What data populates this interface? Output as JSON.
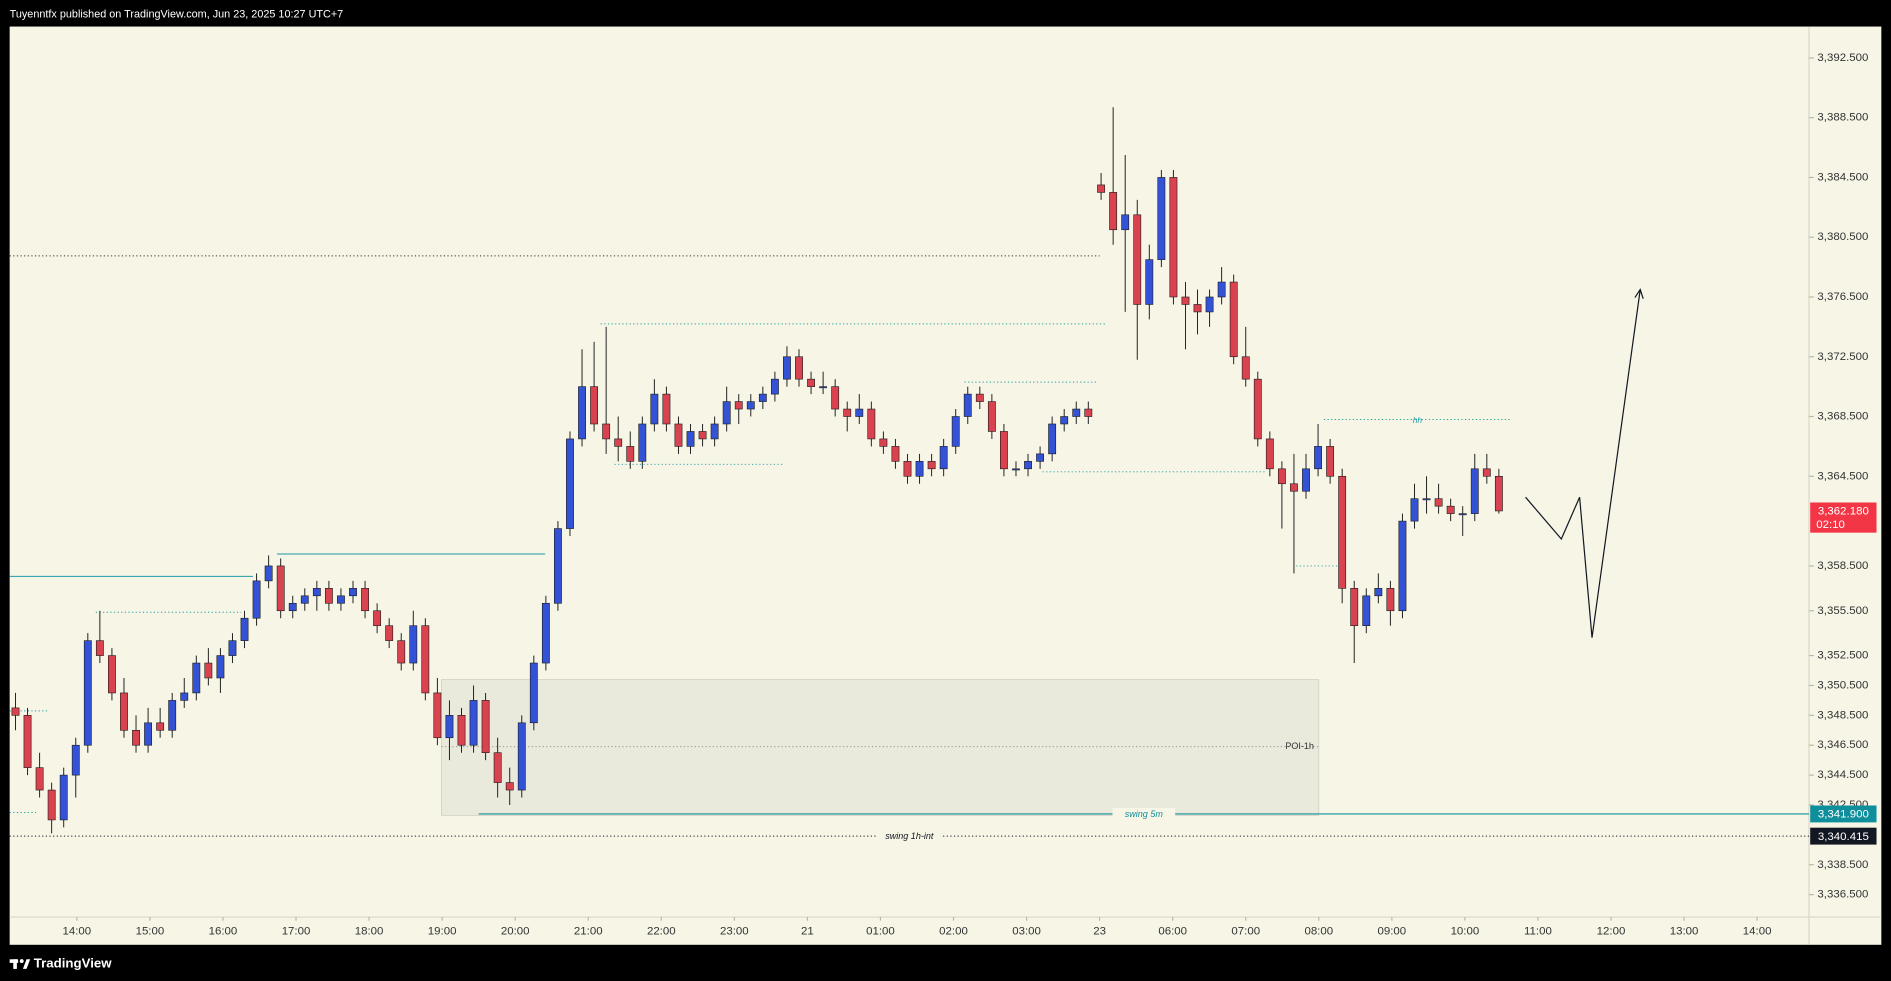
{
  "header": {
    "title": "Tuyenntfx published on TradingView.com, Jun 23, 2025 10:27 UTC+7"
  },
  "footer": {
    "brand": "TradingView"
  },
  "chart_data": {
    "type": "candlestick",
    "up_color": "#3452d6",
    "down_color": "#d8434f",
    "wick_color": "#1c1c1c",
    "xlim": [
      -0.92,
      23.71
    ],
    "ylim": [
      3335.0,
      3394.6
    ],
    "xticks": [
      {
        "value": 0,
        "label": "14:00"
      },
      {
        "value": 1,
        "label": "15:00"
      },
      {
        "value": 2,
        "label": "16:00"
      },
      {
        "value": 3,
        "label": "17:00"
      },
      {
        "value": 4,
        "label": "18:00"
      },
      {
        "value": 5,
        "label": "19:00"
      },
      {
        "value": 6,
        "label": "20:00"
      },
      {
        "value": 7,
        "label": "21:00"
      },
      {
        "value": 8,
        "label": "22:00"
      },
      {
        "value": 9,
        "label": "23:00"
      },
      {
        "value": 10,
        "label": "21"
      },
      {
        "value": 11,
        "label": "01:00"
      },
      {
        "value": 12,
        "label": "02:00"
      },
      {
        "value": 13,
        "label": "03:00"
      },
      {
        "value": 14,
        "label": "23"
      },
      {
        "value": 15,
        "label": "06:00"
      },
      {
        "value": 16,
        "label": "07:00"
      },
      {
        "value": 17,
        "label": "08:00"
      },
      {
        "value": 18,
        "label": "09:00"
      },
      {
        "value": 19,
        "label": "10:00"
      },
      {
        "value": 20,
        "label": "11:00"
      },
      {
        "value": 21,
        "label": "12:00"
      },
      {
        "value": 22,
        "label": "13:00"
      },
      {
        "value": 23,
        "label": "14:00"
      }
    ],
    "yticks": [
      {
        "value": 3392.5,
        "label": "3,392.500"
      },
      {
        "value": 3388.5,
        "label": "3,388.500"
      },
      {
        "value": 3384.5,
        "label": "3,384.500"
      },
      {
        "value": 3380.5,
        "label": "3,380.500"
      },
      {
        "value": 3376.5,
        "label": "3,376.500"
      },
      {
        "value": 3372.5,
        "label": "3,372.500"
      },
      {
        "value": 3368.5,
        "label": "3,368.500"
      },
      {
        "value": 3364.5,
        "label": "3,364.500"
      },
      {
        "value": 3358.5,
        "label": "3,358.500"
      },
      {
        "value": 3355.5,
        "label": "3,355.500"
      },
      {
        "value": 3352.5,
        "label": "3,352.500"
      },
      {
        "value": 3350.5,
        "label": "3,350.500"
      },
      {
        "value": 3348.5,
        "label": "3,348.500"
      },
      {
        "value": 3346.5,
        "label": "3,346.500"
      },
      {
        "value": 3344.5,
        "label": "3,344.500"
      },
      {
        "value": 3342.5,
        "label": "3,342.500"
      },
      {
        "value": 3338.5,
        "label": "3,338.500"
      },
      {
        "value": 3336.5,
        "label": "3,336.500"
      }
    ],
    "x": [
      -0.84,
      -0.675,
      -0.51,
      -0.345,
      -0.18,
      -0.015,
      0.15,
      0.315,
      0.48,
      0.645,
      0.81,
      0.975,
      1.14,
      1.305,
      1.47,
      1.635,
      1.8,
      1.965,
      2.13,
      2.295,
      2.46,
      2.625,
      2.79,
      2.955,
      3.12,
      3.285,
      3.45,
      3.615,
      3.78,
      3.945,
      4.11,
      4.275,
      4.44,
      4.605,
      4.77,
      4.935,
      5.1,
      5.265,
      5.43,
      5.595,
      5.76,
      5.925,
      6.09,
      6.255,
      6.42,
      6.585,
      6.75,
      6.915,
      7.08,
      7.245,
      7.41,
      7.575,
      7.74,
      7.905,
      8.07,
      8.235,
      8.4,
      8.565,
      8.73,
      8.895,
      9.06,
      9.225,
      9.39,
      9.555,
      9.72,
      9.885,
      10.05,
      10.215,
      10.38,
      10.545,
      10.71,
      10.875,
      11.04,
      11.205,
      11.37,
      11.535,
      11.7,
      11.865,
      12.03,
      12.195,
      12.36,
      12.525,
      12.69,
      12.855,
      13.02,
      13.185,
      13.35,
      13.515,
      13.68,
      13.845,
      14.02,
      14.185,
      14.35,
      14.515,
      14.68,
      14.845,
      15.01,
      15.175,
      15.34,
      15.505,
      15.67,
      15.835,
      16.0,
      16.165,
      16.33,
      16.495,
      16.66,
      16.825,
      16.99,
      17.155,
      17.32,
      17.485,
      17.65,
      17.815,
      17.98,
      18.145,
      18.31,
      18.475,
      18.64,
      18.805,
      18.97,
      19.135,
      19.3,
      19.465
    ],
    "candles": [
      [
        3349,
        3350,
        3347.5,
        3348.5
      ],
      [
        3348.5,
        3349,
        3344.5,
        3345
      ],
      [
        3345,
        3346,
        3343,
        3343.5
      ],
      [
        3343.5,
        3344,
        3340.6,
        3341.5
      ],
      [
        3341.5,
        3345,
        3341,
        3344.5
      ],
      [
        3344.5,
        3347,
        3343,
        3346.5
      ],
      [
        3346.5,
        3354,
        3346,
        3353.5
      ],
      [
        3353.5,
        3355.5,
        3352,
        3352.5
      ],
      [
        3352.5,
        3353,
        3349.5,
        3350
      ],
      [
        3350,
        3351,
        3347,
        3347.5
      ],
      [
        3347.5,
        3348.5,
        3346,
        3346.5
      ],
      [
        3346.5,
        3349,
        3346,
        3348
      ],
      [
        3348,
        3349,
        3347,
        3347.5
      ],
      [
        3347.5,
        3350,
        3347,
        3349.5
      ],
      [
        3349.5,
        3351,
        3349,
        3350
      ],
      [
        3350,
        3352.5,
        3349.5,
        3352
      ],
      [
        3352,
        3353,
        3350.5,
        3351
      ],
      [
        3351,
        3353,
        3350,
        3352.5
      ],
      [
        3352.5,
        3354,
        3352,
        3353.5
      ],
      [
        3353.5,
        3355.5,
        3353,
        3355
      ],
      [
        3355,
        3358,
        3354.5,
        3357.5
      ],
      [
        3357.5,
        3359.2,
        3357,
        3358.5
      ],
      [
        3358.5,
        3359,
        3355,
        3355.5
      ],
      [
        3355.5,
        3356.5,
        3355,
        3356
      ],
      [
        3356,
        3357,
        3355.5,
        3356.5
      ],
      [
        3356.5,
        3357.5,
        3355.5,
        3357
      ],
      [
        3357,
        3357.5,
        3355.5,
        3356
      ],
      [
        3356,
        3357,
        3355.5,
        3356.5
      ],
      [
        3356.5,
        3357.5,
        3356,
        3357
      ],
      [
        3357,
        3357.5,
        3355,
        3355.5
      ],
      [
        3355.5,
        3356,
        3354,
        3354.5
      ],
      [
        3354.5,
        3355,
        3353,
        3353.5
      ],
      [
        3353.5,
        3354,
        3351.5,
        3352
      ],
      [
        3352,
        3355.5,
        3351.5,
        3354.5
      ],
      [
        3354.5,
        3355,
        3349.5,
        3350
      ],
      [
        3350,
        3351,
        3346.5,
        3347
      ],
      [
        3347,
        3349.5,
        3345.5,
        3348.5
      ],
      [
        3348.5,
        3349,
        3346,
        3346.5
      ],
      [
        3346.5,
        3350.5,
        3346,
        3349.5
      ],
      [
        3349.5,
        3350,
        3345.5,
        3346
      ],
      [
        3346,
        3347,
        3343,
        3344
      ],
      [
        3344,
        3345,
        3342.5,
        3343.5
      ],
      [
        3343.5,
        3348.5,
        3343,
        3348
      ],
      [
        3348,
        3352.5,
        3347.5,
        3352
      ],
      [
        3352,
        3356.5,
        3351.5,
        3356
      ],
      [
        3356,
        3361.5,
        3355.5,
        3361
      ],
      [
        3361,
        3367.5,
        3360.5,
        3367
      ],
      [
        3367,
        3373,
        3366.5,
        3370.5
      ],
      [
        3370.5,
        3373.5,
        3367.5,
        3368
      ],
      [
        3368,
        3374.5,
        3366,
        3367
      ],
      [
        3367,
        3368.5,
        3365.5,
        3366.5
      ],
      [
        3366.5,
        3367.5,
        3365,
        3365.5
      ],
      [
        3365.5,
        3368.5,
        3365,
        3368
      ],
      [
        3368,
        3371,
        3367.5,
        3370
      ],
      [
        3370,
        3370.5,
        3367.5,
        3368
      ],
      [
        3368,
        3368.5,
        3366,
        3366.5
      ],
      [
        3366.5,
        3368,
        3366,
        3367.5
      ],
      [
        3367.5,
        3368,
        3366.5,
        3367
      ],
      [
        3367,
        3368.5,
        3366.5,
        3368
      ],
      [
        3368,
        3370.5,
        3367.5,
        3369.5
      ],
      [
        3369.5,
        3370,
        3368,
        3369
      ],
      [
        3369,
        3370,
        3368.5,
        3369.5
      ],
      [
        3369.5,
        3370.5,
        3369,
        3370
      ],
      [
        3370,
        3371.5,
        3369.5,
        3371
      ],
      [
        3371,
        3373.2,
        3370.5,
        3372.5
      ],
      [
        3372.5,
        3373,
        3370.5,
        3371
      ],
      [
        3371,
        3371.5,
        3370,
        3370.5
      ],
      [
        3370.5,
        3371.5,
        3370,
        3370.5
      ],
      [
        3370.5,
        3371,
        3368.5,
        3369
      ],
      [
        3369,
        3369.5,
        3367.5,
        3368.5
      ],
      [
        3368.5,
        3370,
        3368,
        3369
      ],
      [
        3369,
        3369.5,
        3366.5,
        3367
      ],
      [
        3367,
        3367.5,
        3366,
        3366.5
      ],
      [
        3366.5,
        3367,
        3365,
        3365.5
      ],
      [
        3365.5,
        3366,
        3364,
        3364.5
      ],
      [
        3364.5,
        3366,
        3364,
        3365.5
      ],
      [
        3365.5,
        3366,
        3364.5,
        3365
      ],
      [
        3365,
        3367,
        3364.5,
        3366.5
      ],
      [
        3366.5,
        3369,
        3366,
        3368.5
      ],
      [
        3368.5,
        3370.5,
        3368,
        3370
      ],
      [
        3370,
        3370.5,
        3369,
        3369.5
      ],
      [
        3369.5,
        3370,
        3367,
        3367.5
      ],
      [
        3367.5,
        3368,
        3364.5,
        3365
      ],
      [
        3365,
        3365.5,
        3364.5,
        3365
      ],
      [
        3365,
        3366,
        3364.5,
        3365.5
      ],
      [
        3365.5,
        3366.5,
        3365,
        3366
      ],
      [
        3366,
        3368.5,
        3365.5,
        3368
      ],
      [
        3368,
        3369,
        3367.5,
        3368.5
      ],
      [
        3368.5,
        3369.5,
        3368,
        3369
      ],
      [
        3369,
        3369.5,
        3368,
        3368.5
      ],
      [
        3384,
        3384.8,
        3383,
        3383.5
      ],
      [
        3383.5,
        3389.2,
        3380,
        3381
      ],
      [
        3381,
        3386,
        3375.5,
        3382
      ],
      [
        3382,
        3383,
        3372.3,
        3376
      ],
      [
        3376,
        3380,
        3375,
        3379
      ],
      [
        3379,
        3385,
        3378.5,
        3384.5
      ],
      [
        3384.5,
        3385,
        3376,
        3376.5
      ],
      [
        3376.5,
        3377.5,
        3373,
        3376
      ],
      [
        3376,
        3377,
        3374,
        3375.5
      ],
      [
        3375.5,
        3377,
        3374.5,
        3376.5
      ],
      [
        3376.5,
        3378.5,
        3376,
        3377.5
      ],
      [
        3377.5,
        3378,
        3372,
        3372.5
      ],
      [
        3372.5,
        3374.5,
        3370.5,
        3371
      ],
      [
        3371,
        3371.5,
        3366.5,
        3367
      ],
      [
        3367,
        3367.5,
        3364.5,
        3365
      ],
      [
        3365,
        3365.5,
        3361,
        3364
      ],
      [
        3364,
        3366,
        3358,
        3363.5
      ],
      [
        3363.5,
        3366,
        3363,
        3365
      ],
      [
        3365,
        3368,
        3364.5,
        3366.5
      ],
      [
        3366.5,
        3367,
        3364,
        3364.5
      ],
      [
        3364.5,
        3365,
        3356,
        3357
      ],
      [
        3357,
        3357.5,
        3352,
        3354.5
      ],
      [
        3354.5,
        3357,
        3354,
        3356.5
      ],
      [
        3356.5,
        3358,
        3356,
        3357
      ],
      [
        3357,
        3357.5,
        3354.5,
        3355.5
      ],
      [
        3355.5,
        3362,
        3355,
        3361.5
      ],
      [
        3361.5,
        3364,
        3361,
        3363
      ],
      [
        3363,
        3364.5,
        3362,
        3363
      ],
      [
        3363,
        3364,
        3362,
        3362.5
      ],
      [
        3362.5,
        3363,
        3361.5,
        3362
      ],
      [
        3362,
        3362.5,
        3360.5,
        3362
      ],
      [
        3362,
        3366,
        3361.5,
        3365
      ],
      [
        3365,
        3366,
        3364,
        3364.5
      ],
      [
        3364.5,
        3365,
        3362,
        3362.18
      ]
    ],
    "last_price": {
      "value": 3362.18,
      "label": "3,362.180",
      "countdown": "02:10",
      "color": "#f23645"
    },
    "zone": {
      "text": "POI-1h",
      "top": 3350.9,
      "bottom": 3341.8,
      "mid": 3346.4,
      "from": 4.99,
      "to": 17.0,
      "color": "#e9e9dc"
    },
    "levels": [
      {
        "text": "swing 5m",
        "value": 3341.9,
        "label": "3,341.900",
        "from": 5.5,
        "color": "#0f8f9c",
        "dash": false
      },
      {
        "text": "swing 1h-int",
        "value": 3340.415,
        "label": "3,340.415",
        "from": -0.92,
        "color": "#131722",
        "dash": true
      }
    ],
    "marker": {
      "text": "hh",
      "value": 3368.3,
      "from": 17.07,
      "to": 19.63,
      "color": "#1f9aa8"
    },
    "lines": [
      {
        "y": 3379.25,
        "x": [
          -0.92,
          14.0
        ],
        "color": "#333333",
        "dash": true
      },
      {
        "y": 3357.8,
        "x": [
          -0.92,
          2.41
        ],
        "color": "#1f9aa8",
        "dash": false
      },
      {
        "y": 3359.3,
        "x": [
          2.74,
          6.41
        ],
        "color": "#1f9aa8",
        "dash": false
      },
      {
        "y": 3355.4,
        "x": [
          0.26,
          2.25
        ],
        "color": "#1f9aa8",
        "dash": true
      },
      {
        "y": 3374.7,
        "x": [
          7.17,
          14.08
        ],
        "color": "#1f9aa8",
        "dash": true
      },
      {
        "y": 3365.3,
        "x": [
          7.36,
          9.67
        ],
        "color": "#1f9aa8",
        "dash": true
      },
      {
        "y": 3370.8,
        "x": [
          12.15,
          13.97
        ],
        "color": "#1f9aa8",
        "dash": true
      },
      {
        "y": 3364.8,
        "x": [
          13.22,
          16.28
        ],
        "color": "#1f9aa8",
        "dash": true
      },
      {
        "y": 3358.5,
        "x": [
          16.69,
          17.27
        ],
        "color": "#1f9aa8",
        "dash": true
      },
      {
        "y": 3348.8,
        "x": [
          -0.92,
          -0.4
        ],
        "color": "#1f9aa8",
        "dash": true
      },
      {
        "y": 3342.0,
        "x": [
          -0.92,
          -0.56
        ],
        "color": "#1f9aa8",
        "dash": true
      }
    ],
    "projection": {
      "x": [
        19.83,
        20.32,
        20.57,
        20.74,
        21.4
      ],
      "y": [
        3363.1,
        3360.3,
        3363.1,
        3353.7,
        3377.0
      ],
      "color": "#131722"
    }
  }
}
